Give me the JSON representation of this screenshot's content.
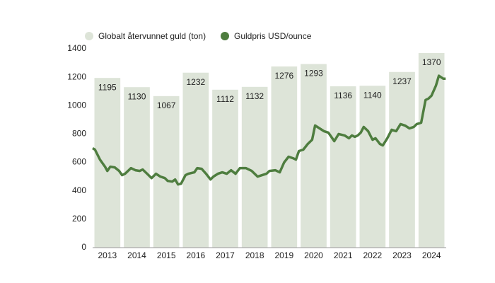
{
  "chart_data": {
    "type": "combo",
    "categories": [
      "2013",
      "2014",
      "2015",
      "2016",
      "2017",
      "2018",
      "2019",
      "2020",
      "2021",
      "2022",
      "2023",
      "2024"
    ],
    "series": [
      {
        "name": "Globalt återvunnet guld (ton)",
        "type": "bar",
        "color": "#dde4d8",
        "values": [
          1195,
          1130,
          1067,
          1232,
          1112,
          1132,
          1276,
          1293,
          1136,
          1140,
          1237,
          1370
        ]
      },
      {
        "name": "Guldpris USD/ounce",
        "type": "line",
        "color": "#4e7d3f",
        "x": [
          2013,
          2013.08,
          2013.25,
          2013.42,
          2013.5,
          2013.6,
          2013.75,
          2013.9,
          2014,
          2014.1,
          2014.3,
          2014.45,
          2014.6,
          2014.7,
          2014.85,
          2015,
          2015.15,
          2015.3,
          2015.45,
          2015.55,
          2015.7,
          2015.8,
          2015.9,
          2016,
          2016.15,
          2016.25,
          2016.45,
          2016.55,
          2016.7,
          2016.85,
          2017,
          2017.1,
          2017.25,
          2017.4,
          2017.55,
          2017.7,
          2017.85,
          2018,
          2018.2,
          2018.4,
          2018.6,
          2018.75,
          2018.9,
          2019,
          2019.2,
          2019.35,
          2019.5,
          2019.65,
          2019.8,
          2019.9,
          2020,
          2020.15,
          2020.3,
          2020.45,
          2020.55,
          2020.7,
          2020.85,
          2021,
          2021.1,
          2021.2,
          2021.35,
          2021.55,
          2021.7,
          2021.8,
          2021.9,
          2022,
          2022.1,
          2022.2,
          2022.35,
          2022.5,
          2022.6,
          2022.75,
          2022.85,
          2023,
          2023.15,
          2023.3,
          2023.45,
          2023.6,
          2023.75,
          2023.9,
          2024,
          2024.15,
          2024.3,
          2024.4,
          2024.5,
          2024.65,
          2024.75,
          2024.9,
          2024.98
        ],
        "values": [
          700,
          690,
          620,
          570,
          540,
          570,
          565,
          540,
          510,
          520,
          560,
          545,
          540,
          550,
          520,
          490,
          520,
          500,
          490,
          470,
          465,
          480,
          445,
          450,
          510,
          520,
          530,
          560,
          555,
          520,
          480,
          500,
          520,
          530,
          520,
          545,
          520,
          560,
          560,
          540,
          500,
          510,
          520,
          540,
          545,
          530,
          600,
          640,
          630,
          620,
          680,
          690,
          730,
          760,
          860,
          840,
          820,
          810,
          780,
          750,
          800,
          790,
          770,
          790,
          780,
          790,
          810,
          850,
          820,
          760,
          770,
          730,
          720,
          770,
          830,
          820,
          870,
          860,
          840,
          850,
          870,
          880,
          1040,
          1050,
          1070,
          1140,
          1210,
          1190,
          1190
        ]
      }
    ],
    "xlim": [
      2013,
      2025
    ],
    "ylim": [
      0,
      1400
    ],
    "yticks": [
      0,
      200,
      400,
      600,
      800,
      1000,
      1200,
      1400
    ]
  }
}
